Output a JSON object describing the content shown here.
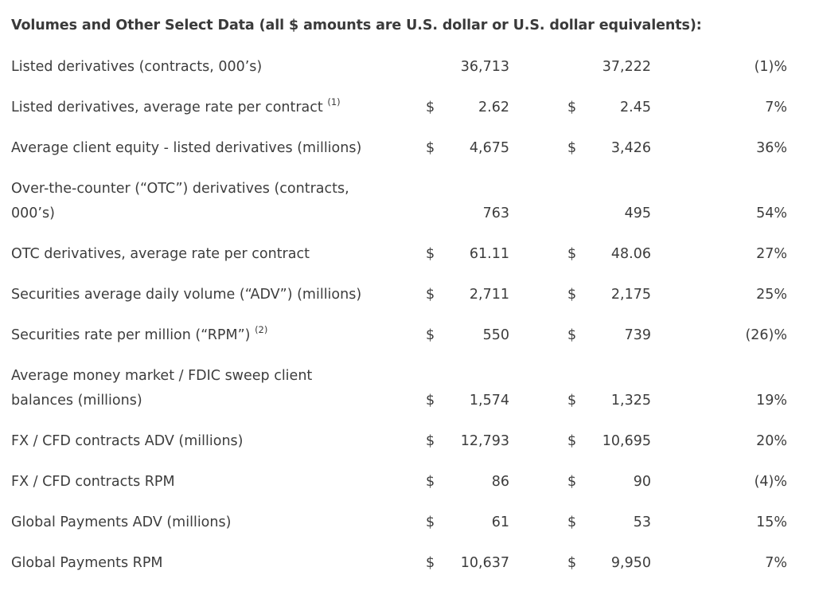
{
  "title": "Volumes and Other Select Data (all $ amounts are U.S. dollar or U.S. dollar equivalents):",
  "rows": [
    {
      "label": "Listed derivatives (contracts, 000’s)",
      "sup": "",
      "cur1": "",
      "val1": "36,713",
      "cur2": "",
      "val2": "37,222",
      "change": "(1)%"
    },
    {
      "label": "Listed derivatives, average rate per contract",
      "sup": "(1)",
      "cur1": "$",
      "val1": "2.62",
      "cur2": "$",
      "val2": "2.45",
      "change": "7%"
    },
    {
      "label": "Average client equity - listed derivatives (millions)",
      "sup": "",
      "cur1": "$",
      "val1": "4,675",
      "cur2": "$",
      "val2": "3,426",
      "change": "36%"
    },
    {
      "label_line1": "Over-the-counter (“OTC”) derivatives (contracts,",
      "label_line2": "000’s)",
      "sup": "",
      "cur1": "",
      "val1": "763",
      "cur2": "",
      "val2": "495",
      "change": "54%"
    },
    {
      "label": "OTC derivatives, average rate per contract",
      "sup": "",
      "cur1": "$",
      "val1": "61.11",
      "cur2": "$",
      "val2": "48.06",
      "change": "27%"
    },
    {
      "label": "Securities average daily volume (“ADV”) (millions)",
      "sup": "",
      "cur1": "$",
      "val1": "2,711",
      "cur2": "$",
      "val2": "2,175",
      "change": "25%"
    },
    {
      "label": "Securities rate per million (“RPM”)",
      "sup": "(2)",
      "cur1": "$",
      "val1": "550",
      "cur2": "$",
      "val2": "739",
      "change": "(26)%"
    },
    {
      "label_line1": "Average money market / FDIC sweep client",
      "label_line2": "balances (millions)",
      "sup": "",
      "cur1": "$",
      "val1": "1,574",
      "cur2": "$",
      "val2": "1,325",
      "change": "19%"
    },
    {
      "label": "FX / CFD contracts ADV (millions)",
      "sup": "",
      "cur1": "$",
      "val1": "12,793",
      "cur2": "$",
      "val2": "10,695",
      "change": "20%"
    },
    {
      "label": "FX / CFD contracts RPM",
      "sup": "",
      "cur1": "$",
      "val1": "86",
      "cur2": "$",
      "val2": "90",
      "change": "(4)%"
    },
    {
      "label": "Global Payments ADV (millions)",
      "sup": "",
      "cur1": "$",
      "val1": "61",
      "cur2": "$",
      "val2": "53",
      "change": "15%"
    },
    {
      "label": "Global Payments RPM",
      "sup": "",
      "cur1": "$",
      "val1": "10,637",
      "cur2": "$",
      "val2": "9,950",
      "change": "7%"
    }
  ]
}
